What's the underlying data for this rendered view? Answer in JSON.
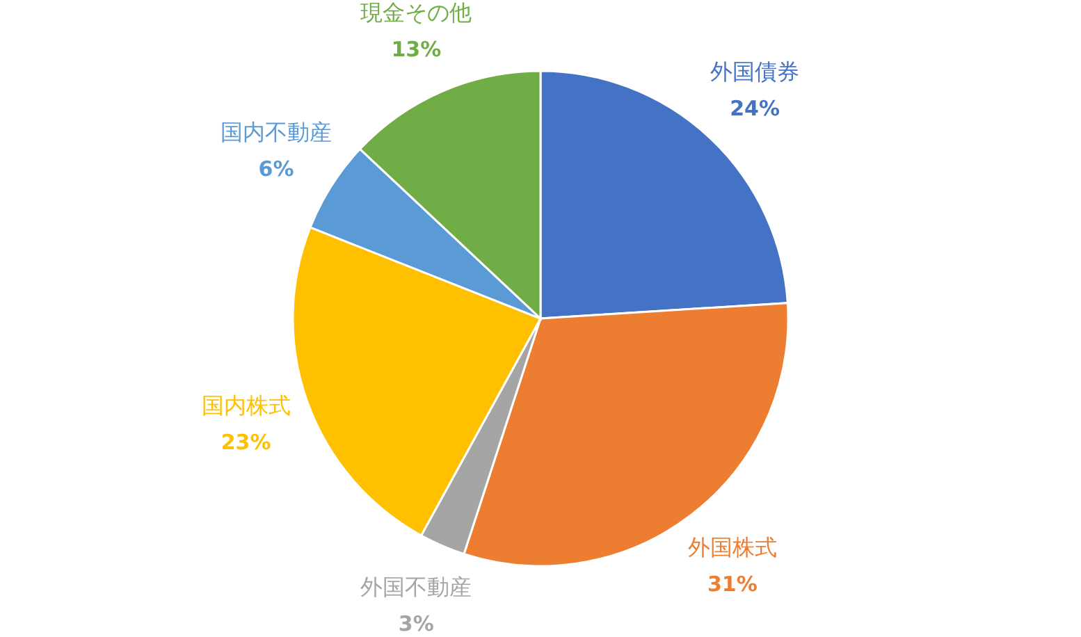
{
  "chart_data": {
    "type": "pie",
    "categories": [
      "外国債券",
      "外国株式",
      "外国不動産",
      "国内株式",
      "国内不動産",
      "現金その他"
    ],
    "values": [
      24,
      31,
      3,
      23,
      6,
      13
    ],
    "colors": [
      "#4472c4",
      "#ed7d31",
      "#a5a5a5",
      "#ffc000",
      "#5b9bd5",
      "#70ad47"
    ],
    "value_labels": [
      "24%",
      "31%",
      "3%",
      "23%",
      "6%",
      "13%"
    ]
  }
}
